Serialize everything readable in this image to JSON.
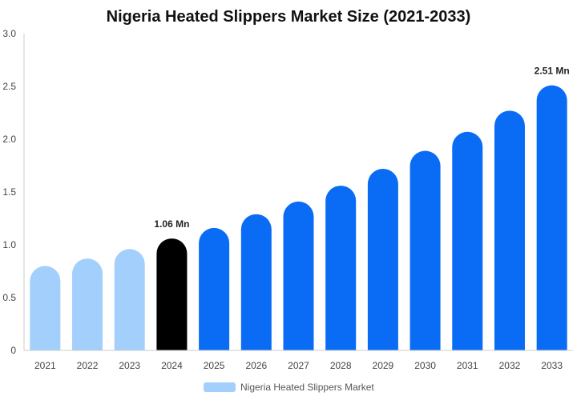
{
  "chart_data": {
    "type": "bar",
    "title": "Nigeria Heated Slippers Market Size (2021-2033)",
    "xlabel": "",
    "ylabel": "",
    "ylim": [
      0,
      3.0
    ],
    "yticks": [
      "0",
      "0.5",
      "1.0",
      "1.5",
      "2.0",
      "2.5",
      "3.0"
    ],
    "categories": [
      "2021",
      "2022",
      "2023",
      "2024",
      "2025",
      "2026",
      "2027",
      "2028",
      "2029",
      "2030",
      "2031",
      "2032",
      "2033"
    ],
    "series": [
      {
        "name": "Nigeria Heated Slippers Market",
        "values": [
          0.8,
          0.87,
          0.96,
          1.06,
          1.16,
          1.29,
          1.41,
          1.56,
          1.72,
          1.89,
          2.07,
          2.27,
          2.51
        ]
      }
    ],
    "bar_colors": [
      "#a3cffc",
      "#a3cffc",
      "#a3cffc",
      "#000000",
      "#0a6cf5",
      "#0a6cf5",
      "#0a6cf5",
      "#0a6cf5",
      "#0a6cf5",
      "#0a6cf5",
      "#0a6cf5",
      "#0a6cf5",
      "#0a6cf5"
    ],
    "data_labels": [
      {
        "category": "2024",
        "text": "1.06 Mn"
      },
      {
        "category": "2033",
        "text": "2.51 Mn"
      }
    ],
    "legend": {
      "position": "bottom-center",
      "color": "#a3cffc"
    },
    "grid": false
  }
}
